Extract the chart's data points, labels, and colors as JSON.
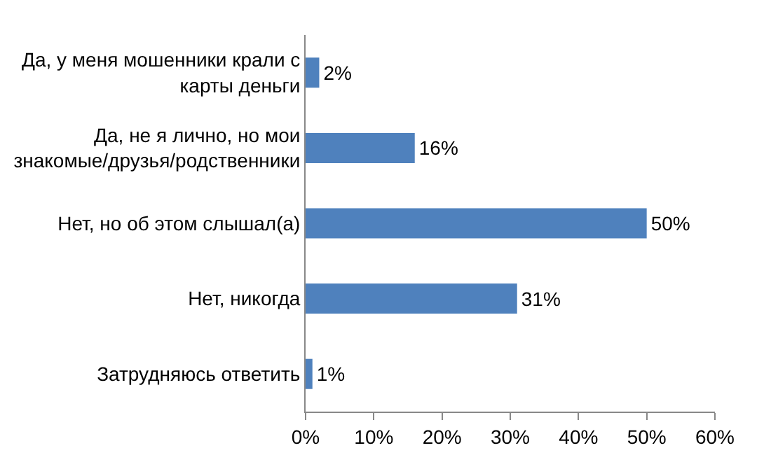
{
  "chart_data": {
    "type": "bar",
    "orientation": "horizontal",
    "categories": [
      "Да, у меня мошенники крали с карты деньги",
      "Да, не я лично, но мои знакомые/друзья/родственники",
      "Нет, но об этом слышал(а)",
      "Нет, никогда",
      "Затрудняюсь ответить"
    ],
    "values": [
      2,
      16,
      50,
      31,
      1
    ],
    "value_labels": [
      "2%",
      "16%",
      "50%",
      "31%",
      "1%"
    ],
    "color": "#4f81bd",
    "xlim": [
      0,
      60
    ],
    "xticks": [
      {
        "value": 0,
        "label": "0%"
      },
      {
        "value": 10,
        "label": "10%"
      },
      {
        "value": 20,
        "label": "20%"
      },
      {
        "value": 30,
        "label": "30%"
      },
      {
        "value": 40,
        "label": "40%"
      },
      {
        "value": 50,
        "label": "50%"
      },
      {
        "value": 60,
        "label": "60%"
      }
    ],
    "grid": false
  }
}
